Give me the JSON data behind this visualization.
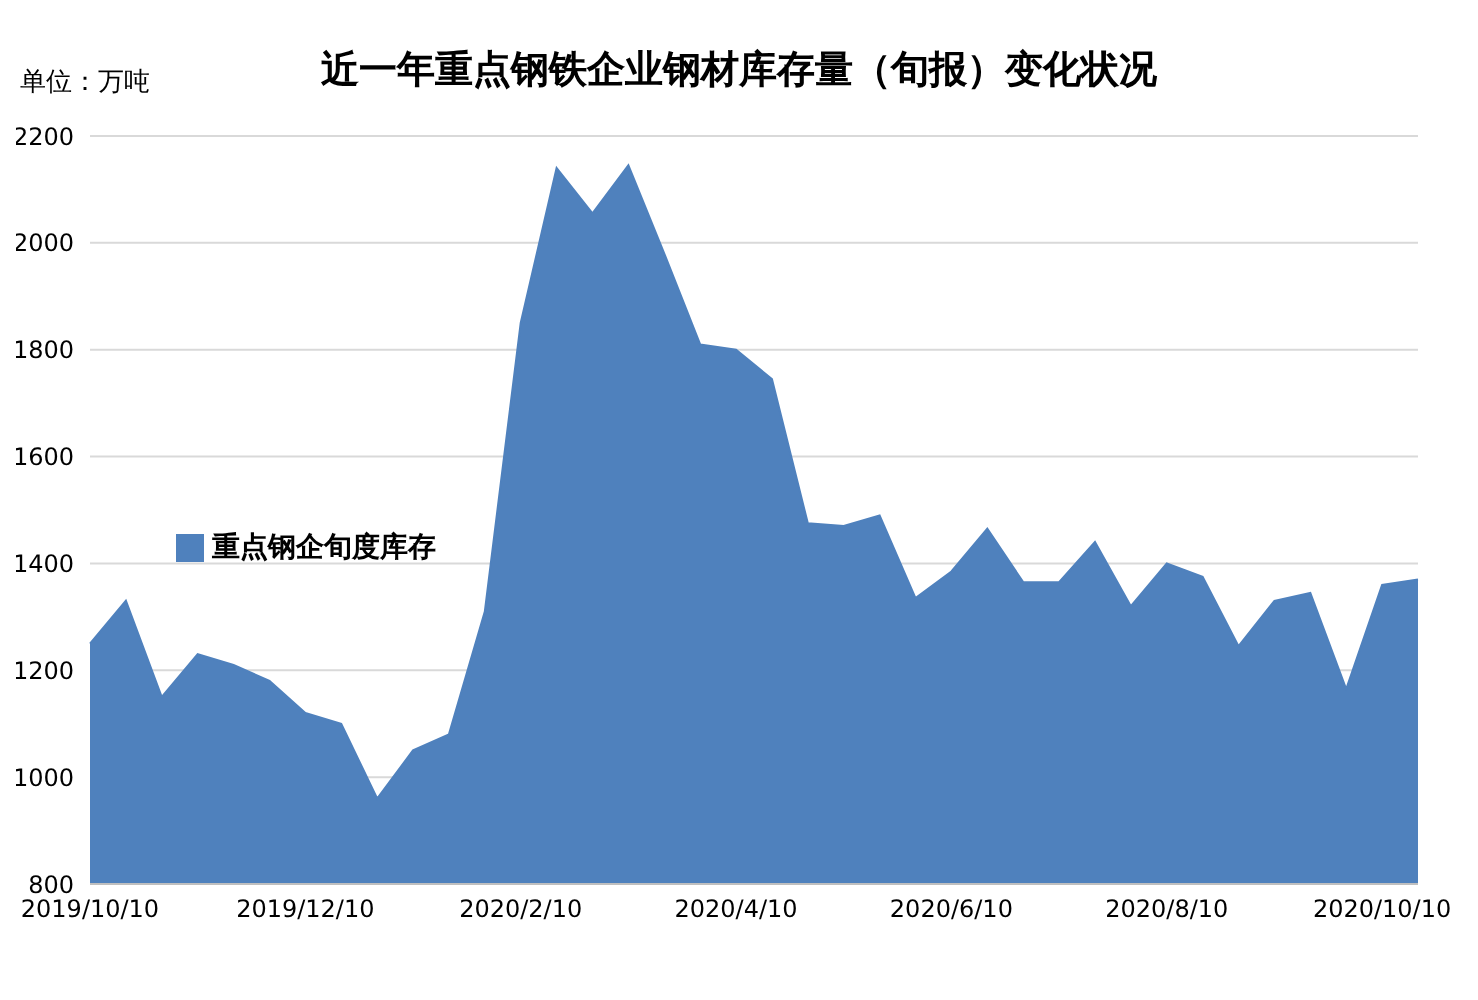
{
  "chart_data": {
    "type": "area",
    "title": "近一年重点钢铁企业钢材库存量（旬报）变化状况",
    "ylabel": "单位：万吨",
    "categories": [
      "2019/10/10",
      null,
      null,
      null,
      null,
      null,
      "2019/12/10",
      null,
      null,
      null,
      null,
      null,
      "2020/2/10",
      null,
      null,
      null,
      null,
      null,
      "2020/4/10",
      null,
      null,
      null,
      null,
      null,
      "2020/6/10",
      null,
      null,
      null,
      null,
      null,
      "2020/8/10",
      null,
      null,
      null,
      null,
      null,
      "2020/10/10",
      null
    ],
    "series": [
      {
        "name": "重点钢企旬度库存",
        "color": "#4f81bd",
        "values": [
          1250,
          1330,
          1150,
          1230,
          1210,
          1180,
          1120,
          1100,
          960,
          1050,
          1080,
          1310,
          1850,
          2140,
          2055,
          2145,
          1980,
          1810,
          1800,
          1745,
          1475,
          1470,
          1490,
          1335,
          1385,
          1465,
          1365,
          1365,
          1440,
          1320,
          1400,
          1375,
          1245,
          1330,
          1345,
          1165,
          1360,
          1370
        ]
      }
    ],
    "ylim": [
      800,
      2200
    ],
    "yticks": [
      800,
      1000,
      1200,
      1400,
      1600,
      1800,
      2000,
      2200
    ],
    "grid": "y",
    "legend": "left"
  }
}
